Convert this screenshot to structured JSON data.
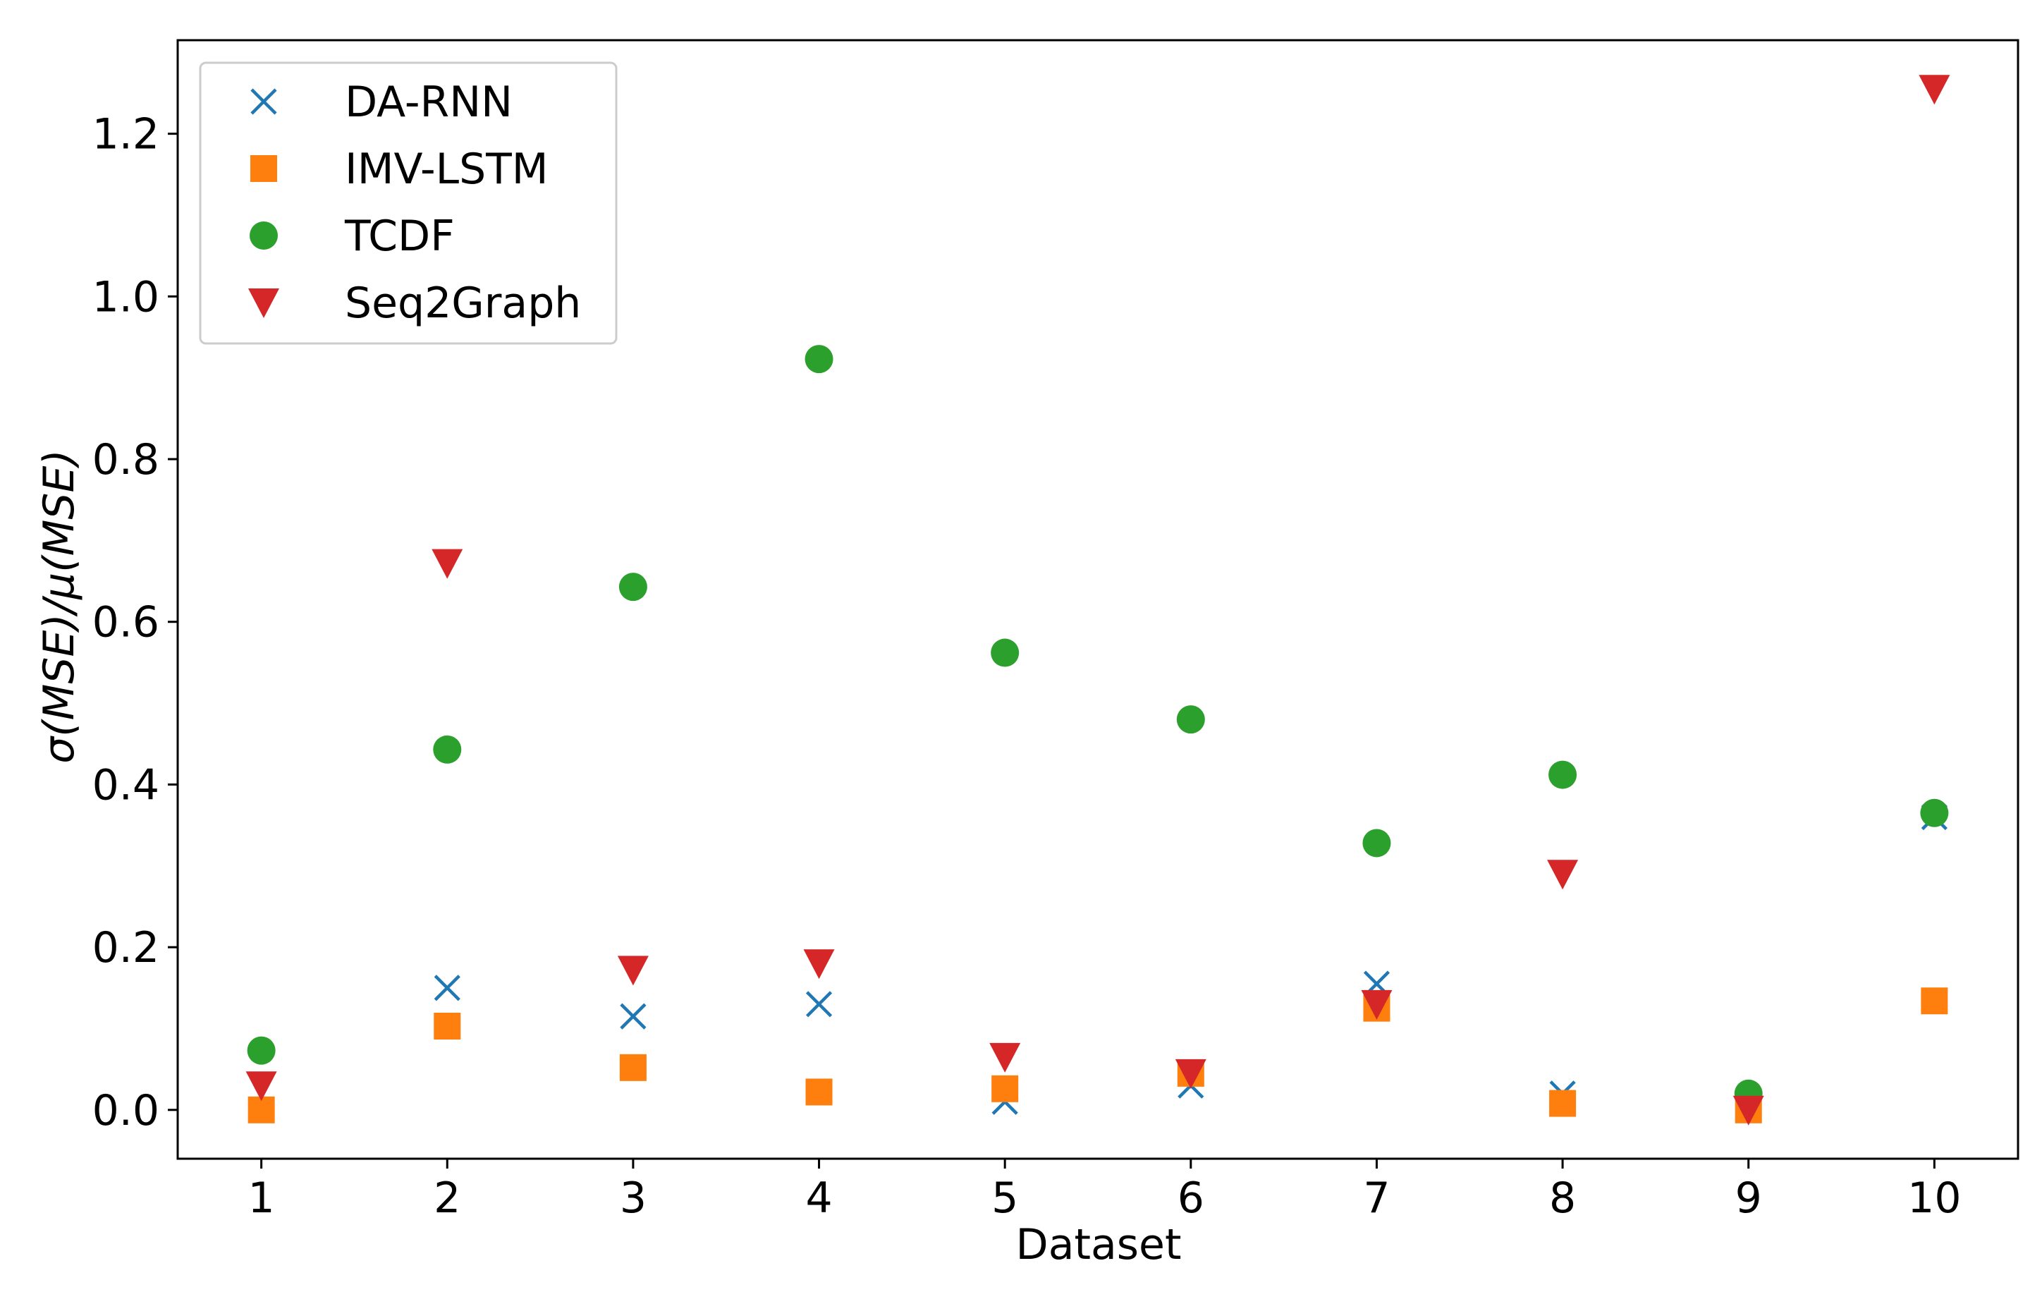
{
  "chart_data": {
    "type": "scatter",
    "xlabel": "Dataset",
    "ylabel": "σ(MSE)/μ(MSE)",
    "x": [
      1,
      2,
      3,
      4,
      5,
      6,
      7,
      8,
      9,
      10
    ],
    "xticks": [
      "1",
      "2",
      "3",
      "4",
      "5",
      "6",
      "7",
      "8",
      "9",
      "10"
    ],
    "yticks": [
      "0.0",
      "0.2",
      "0.4",
      "0.6",
      "0.8",
      "1.0",
      "1.2"
    ],
    "xlim": [
      0.55,
      10.45
    ],
    "ylim": [
      -0.06,
      1.315
    ],
    "grid": false,
    "legend_position": "top-left",
    "series": [
      {
        "name": "DA-RNN",
        "marker": "x",
        "color": "#1f77b4",
        "values": [
          0.0,
          0.15,
          0.115,
          0.13,
          0.01,
          0.03,
          0.155,
          0.02,
          0.0,
          0.36
        ]
      },
      {
        "name": "IMV-LSTM",
        "marker": "square",
        "color": "#ff7f0e",
        "values": [
          0.0,
          0.103,
          0.052,
          0.022,
          0.026,
          0.045,
          0.125,
          0.008,
          0.0,
          0.134
        ]
      },
      {
        "name": "TCDF",
        "marker": "circle",
        "color": "#2ca02c",
        "values": [
          0.073,
          0.443,
          0.643,
          0.923,
          0.562,
          0.48,
          0.328,
          0.412,
          0.02,
          0.365
        ]
      },
      {
        "name": "Seq2Graph",
        "marker": "triangle-down",
        "color": "#d62728",
        "values": [
          0.03,
          0.672,
          0.172,
          0.18,
          0.065,
          0.045,
          0.13,
          0.29,
          0.0,
          1.255
        ]
      }
    ]
  }
}
